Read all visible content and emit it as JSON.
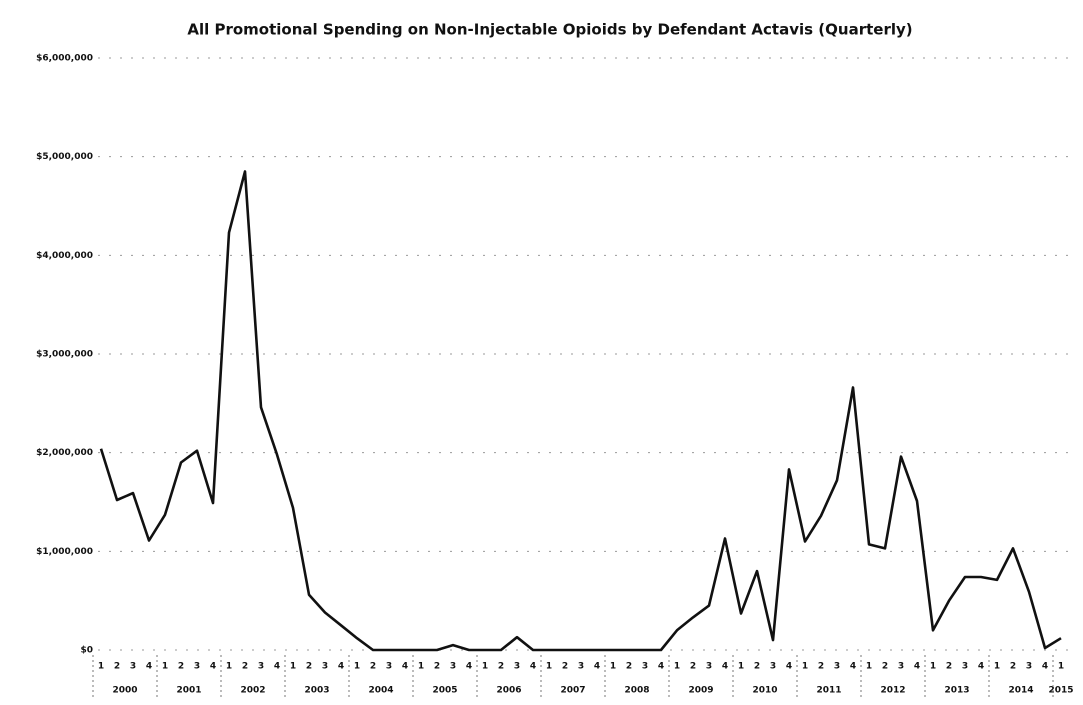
{
  "chart_data": {
    "type": "line",
    "title": "All Promotional Spending on Non-Injectable Opioids by Defendant Actavis (Quarterly)",
    "categories": [
      "1",
      "2",
      "3",
      "4",
      "1",
      "2",
      "3",
      "4",
      "1",
      "2",
      "3",
      "4",
      "1",
      "2",
      "3",
      "4",
      "1",
      "2",
      "3",
      "4",
      "1",
      "2",
      "3",
      "4",
      "1",
      "2",
      "3",
      "4",
      "1",
      "2",
      "3",
      "4",
      "1",
      "2",
      "3",
      "4",
      "1",
      "2",
      "3",
      "4",
      "1",
      "2",
      "3",
      "4",
      "1",
      "2",
      "3",
      "4",
      "1",
      "2",
      "3",
      "4",
      "1",
      "2",
      "3",
      "4",
      "1",
      "2",
      "3",
      "4",
      "1"
    ],
    "years": [
      "2000",
      "2001",
      "2002",
      "2003",
      "2004",
      "2005",
      "2006",
      "2007",
      "2008",
      "2009",
      "2010",
      "2011",
      "2012",
      "2013",
      "2014",
      "2015"
    ],
    "values": [
      2040000,
      1520000,
      1590000,
      1110000,
      1370000,
      1900000,
      2020000,
      1490000,
      4230000,
      4850000,
      2460000,
      1980000,
      1440000,
      560000,
      380000,
      250000,
      120000,
      0,
      0,
      0,
      0,
      0,
      50000,
      0,
      0,
      0,
      130000,
      0,
      0,
      0,
      0,
      0,
      0,
      0,
      0,
      0,
      200000,
      330000,
      450000,
      1130000,
      370000,
      800000,
      100000,
      1830000,
      1100000,
      1360000,
      1720000,
      2660000,
      1070000,
      1030000,
      1960000,
      1510000,
      200000,
      500000,
      740000,
      740000,
      710000,
      1030000,
      590000,
      20000,
      120000
    ],
    "color": "#111111",
    "ylim": [
      0,
      6000000
    ],
    "yticks": [
      {
        "value": 0,
        "label": "$0"
      },
      {
        "value": 1000000,
        "label": "$1,000,000"
      },
      {
        "value": 2000000,
        "label": "$2,000,000"
      },
      {
        "value": 3000000,
        "label": "$3,000,000"
      },
      {
        "value": 4000000,
        "label": "$4,000,000"
      },
      {
        "value": 5000000,
        "label": "$5,000,000"
      },
      {
        "value": 6000000,
        "label": "$6,000,000"
      }
    ],
    "grid": true
  }
}
